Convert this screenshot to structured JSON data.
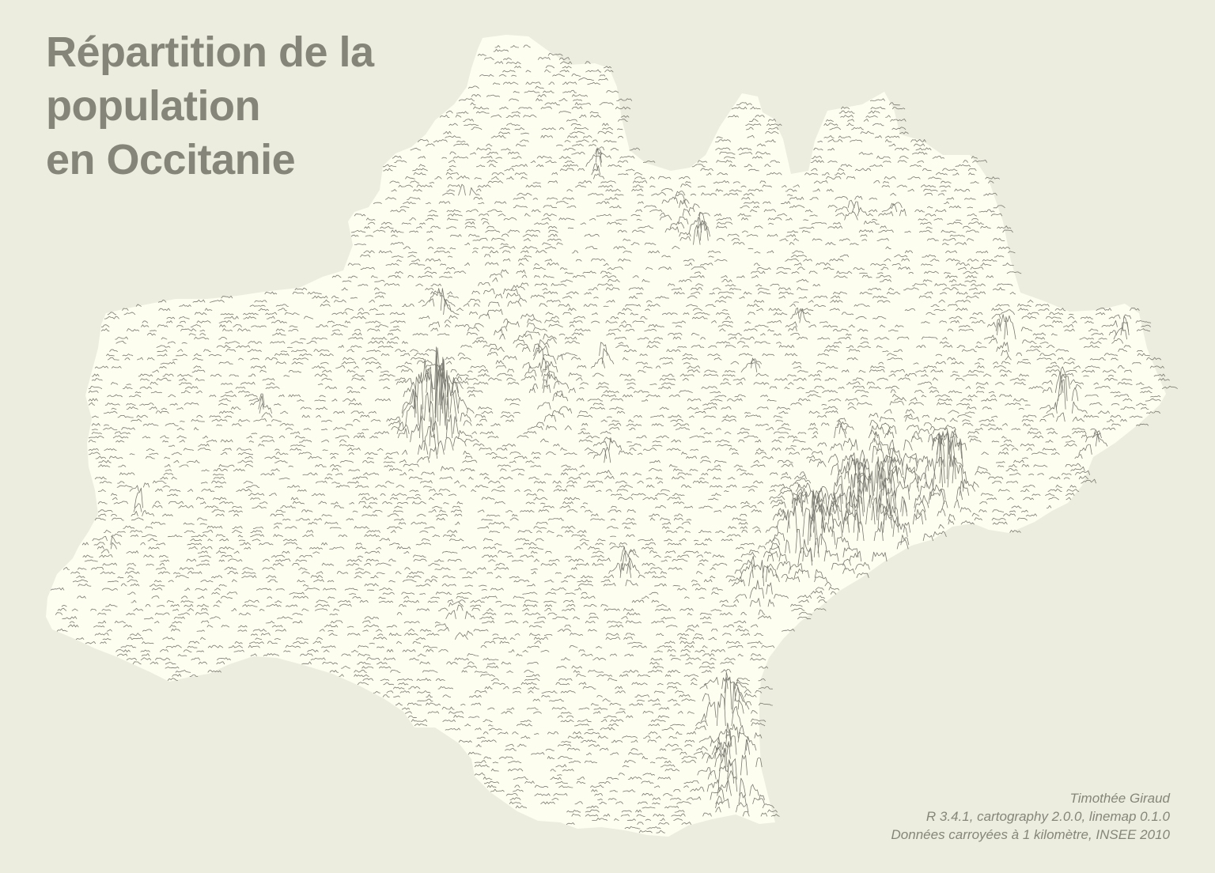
{
  "title_lines": [
    "Répartition de la",
    "population",
    "en Occitanie"
  ],
  "credits": {
    "author": "Timothée Giraud",
    "software": "R 3.4.1, cartography 2.0.0, linemap 0.1.0",
    "source": "Données carroyées à 1 kilomètre, INSEE 2010"
  },
  "colors": {
    "background": "#ededdf",
    "region_fill": "#fdfdf0",
    "lines": "#7a7a72",
    "text": "#858579"
  },
  "map": {
    "type": "linemap (joy plot of population density lines)",
    "region": "Occitanie"
  }
}
